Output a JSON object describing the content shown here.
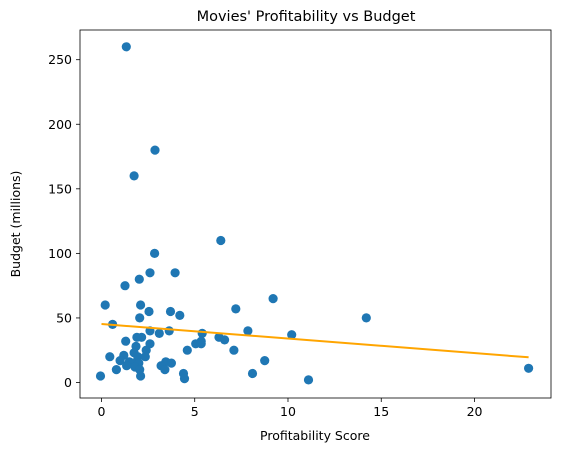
{
  "chart_data": {
    "type": "scatter",
    "title": "Movies' Profitability vs Budget",
    "xlabel": "Profitability Score",
    "ylabel": "Budget (millions)",
    "xlim": [
      -1.15,
      24.1
    ],
    "ylim": [
      -12,
      273
    ],
    "x_ticks": [
      0,
      5,
      10,
      15,
      20
    ],
    "y_ticks": [
      0,
      50,
      100,
      150,
      200,
      250
    ],
    "grid": false,
    "colors": {
      "points": "#1f77b4",
      "trend": "#ffa500"
    },
    "points": [
      {
        "x": 1.33,
        "y": 260
      },
      {
        "x": 2.87,
        "y": 180
      },
      {
        "x": 1.75,
        "y": 160
      },
      {
        "x": 6.4,
        "y": 110
      },
      {
        "x": 2.85,
        "y": 100
      },
      {
        "x": 2.6,
        "y": 85
      },
      {
        "x": 3.95,
        "y": 85
      },
      {
        "x": 2.03,
        "y": 80
      },
      {
        "x": 1.26,
        "y": 75
      },
      {
        "x": 0.2,
        "y": 60
      },
      {
        "x": 2.1,
        "y": 60
      },
      {
        "x": 7.2,
        "y": 57
      },
      {
        "x": 2.55,
        "y": 55
      },
      {
        "x": 3.7,
        "y": 55
      },
      {
        "x": 4.2,
        "y": 52
      },
      {
        "x": 2.05,
        "y": 50
      },
      {
        "x": 14.2,
        "y": 50
      },
      {
        "x": 0.6,
        "y": 45
      },
      {
        "x": 9.2,
        "y": 65
      },
      {
        "x": 3.63,
        "y": 40
      },
      {
        "x": 7.85,
        "y": 40
      },
      {
        "x": 2.6,
        "y": 40
      },
      {
        "x": 3.1,
        "y": 38
      },
      {
        "x": 5.4,
        "y": 38
      },
      {
        "x": 10.2,
        "y": 37
      },
      {
        "x": 2.15,
        "y": 35
      },
      {
        "x": 1.9,
        "y": 35
      },
      {
        "x": 6.3,
        "y": 35
      },
      {
        "x": 6.6,
        "y": 33
      },
      {
        "x": 1.3,
        "y": 32
      },
      {
        "x": 5.35,
        "y": 32
      },
      {
        "x": 5.05,
        "y": 30
      },
      {
        "x": 5.35,
        "y": 30
      },
      {
        "x": 2.6,
        "y": 30
      },
      {
        "x": 1.85,
        "y": 28
      },
      {
        "x": 4.6,
        "y": 25
      },
      {
        "x": 2.4,
        "y": 25
      },
      {
        "x": 7.1,
        "y": 25
      },
      {
        "x": 1.75,
        "y": 23
      },
      {
        "x": 1.2,
        "y": 21
      },
      {
        "x": 0.45,
        "y": 20
      },
      {
        "x": 1.95,
        "y": 20
      },
      {
        "x": 2.35,
        "y": 20
      },
      {
        "x": 8.75,
        "y": 17
      },
      {
        "x": 1.0,
        "y": 17
      },
      {
        "x": 1.5,
        "y": 16
      },
      {
        "x": 1.7,
        "y": 15
      },
      {
        "x": 3.45,
        "y": 16
      },
      {
        "x": 3.75,
        "y": 15
      },
      {
        "x": 2.0,
        "y": 15
      },
      {
        "x": 1.35,
        "y": 13
      },
      {
        "x": 3.2,
        "y": 13
      },
      {
        "x": 1.8,
        "y": 12
      },
      {
        "x": 3.4,
        "y": 10
      },
      {
        "x": 2.05,
        "y": 10
      },
      {
        "x": 0.8,
        "y": 10
      },
      {
        "x": 4.4,
        "y": 7
      },
      {
        "x": 8.1,
        "y": 7
      },
      {
        "x": 2.1,
        "y": 5
      },
      {
        "x": -0.05,
        "y": 5
      },
      {
        "x": 4.45,
        "y": 3
      },
      {
        "x": 11.1,
        "y": 2
      },
      {
        "x": 22.9,
        "y": 11
      }
    ],
    "trendline": {
      "x": [
        0,
        22.9
      ],
      "y": [
        45.3,
        19.5
      ]
    }
  }
}
